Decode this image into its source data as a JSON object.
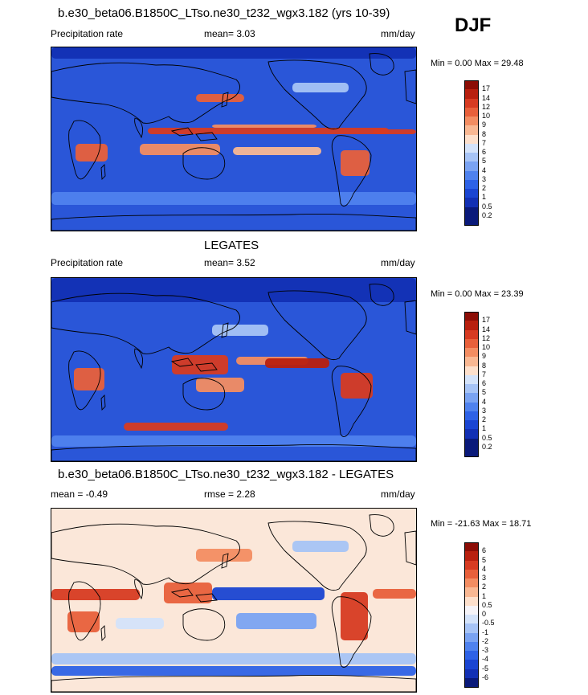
{
  "season": "DJF",
  "colors": {
    "precip": [
      "#0a1a7a",
      "#1230b4",
      "#1a45d2",
      "#2e62e6",
      "#4f82ee",
      "#7aa3f2",
      "#a7c4f6",
      "#d4e3fa",
      "#fde0cc",
      "#f9b893",
      "#f38d62",
      "#e8603b",
      "#d73b22",
      "#b8200f",
      "#8c0d06"
    ],
    "diff": [
      "#0a1a7a",
      "#1230b4",
      "#1a45d2",
      "#2e62e6",
      "#4f82ee",
      "#7aa3f2",
      "#a7c4f6",
      "#d4e3fa",
      "#f6f4f8",
      "#fde0cc",
      "#f9b893",
      "#f38d62",
      "#e8603b",
      "#d73b22",
      "#b8200f",
      "#8c0d06"
    ]
  },
  "chart_data": [
    {
      "type": "heatmap",
      "title": "b.e30_beta06.B1850C_LTso.ne30_t232_wgx3.182 (yrs 10-39)",
      "left_label": "Precipitation rate",
      "center_label": "mean=   3.03",
      "units": "mm/day",
      "minmax": "Min =   0.00 Max =  29.48",
      "legend_levels": [
        "17",
        "14",
        "12",
        "10",
        "9",
        "8",
        "7",
        "6",
        "5",
        "4",
        "3",
        "2",
        "1",
        "0.5",
        "0.2"
      ]
    },
    {
      "type": "heatmap",
      "title": "LEGATES",
      "left_label": "Precipitation rate",
      "center_label": "mean=   3.52",
      "units": "mm/day",
      "minmax": "Min =   0.00 Max =  23.39",
      "legend_levels": [
        "17",
        "14",
        "12",
        "10",
        "9",
        "8",
        "7",
        "6",
        "5",
        "4",
        "3",
        "2",
        "1",
        "0.5",
        "0.2"
      ]
    },
    {
      "type": "heatmap",
      "title": "b.e30_beta06.B1850C_LTso.ne30_t232_wgx3.182 - LEGATES",
      "left_label": "mean =  -0.49",
      "center_label": "rmse =   2.28",
      "units": "mm/day",
      "minmax": "Min = -21.63 Max =  18.71",
      "legend_levels": [
        "6",
        "5",
        "4",
        "3",
        "2",
        "1",
        "0.5",
        "0",
        "-0.5",
        "-1",
        "-2",
        "-3",
        "-4",
        "-5",
        "-6"
      ]
    }
  ]
}
